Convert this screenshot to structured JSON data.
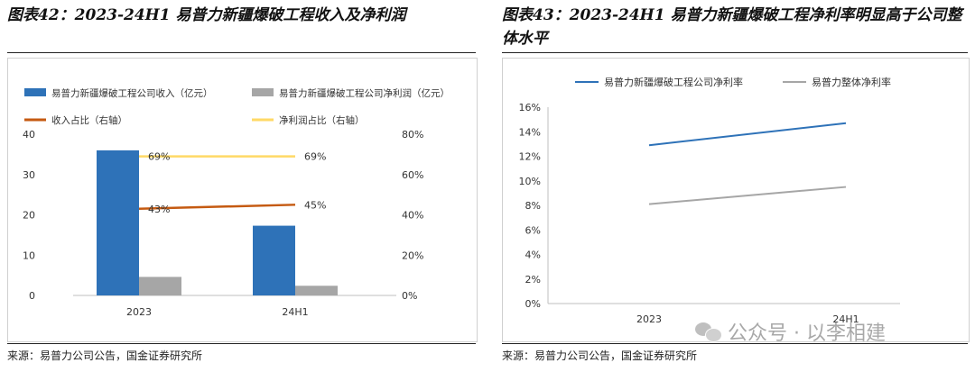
{
  "left": {
    "title": "图表42：2023-24H1 易普力新疆爆破工程收入及净利润",
    "source": "来源：易普力公司公告，国金证券研究所"
  },
  "right": {
    "title": "图表43：2023-24H1 易普力新疆爆破工程净利率明显高于公司整体水平",
    "source": "来源：易普力公司公告，国金证券研究所"
  },
  "watermark": "公众号 · 以李相建",
  "colors": {
    "blue": "#2E72B8",
    "gray": "#A6A6A6",
    "orange": "#C55A11",
    "yellow": "#FFD966"
  },
  "chart_data": [
    {
      "type": "bar",
      "categories": [
        "2023",
        "24H1"
      ],
      "series": [
        {
          "name": "易普力新疆爆破工程公司收入（亿元）",
          "kind": "bar",
          "axis": "left",
          "color": "#2E72B8",
          "values": [
            36,
            17.3
          ]
        },
        {
          "name": "易普力新疆爆破工程公司净利润（亿元）",
          "kind": "bar",
          "axis": "left",
          "color": "#A6A6A6",
          "values": [
            4.6,
            2.4
          ]
        },
        {
          "name": "收入占比（右轴）",
          "kind": "line",
          "axis": "right",
          "color": "#C55A11",
          "values": [
            43,
            45
          ],
          "labels": [
            "43%",
            "45%"
          ]
        },
        {
          "name": "净利润占比（右轴）",
          "kind": "line",
          "axis": "right",
          "color": "#FFD966",
          "values": [
            69,
            69
          ],
          "labels": [
            "69%",
            "69%"
          ]
        }
      ],
      "yleft": {
        "min": 0,
        "max": 40,
        "ticks": [
          "0",
          "10",
          "20",
          "30",
          "40"
        ]
      },
      "yright": {
        "min": 0,
        "max": 80,
        "ticks": [
          "0%",
          "20%",
          "40%",
          "60%",
          "80%"
        ]
      },
      "grid": false
    },
    {
      "type": "line",
      "categories": [
        "2023",
        "24H1"
      ],
      "series": [
        {
          "name": "易普力新疆爆破工程公司净利率",
          "color": "#2E72B8",
          "values": [
            12.9,
            14.7
          ]
        },
        {
          "name": "易普力整体净利率",
          "color": "#A6A6A6",
          "values": [
            8.1,
            9.5
          ]
        }
      ],
      "y": {
        "min": 0,
        "max": 16,
        "ticks": [
          "0%",
          "2%",
          "4%",
          "6%",
          "8%",
          "10%",
          "12%",
          "14%",
          "16%"
        ]
      },
      "grid": false
    }
  ]
}
